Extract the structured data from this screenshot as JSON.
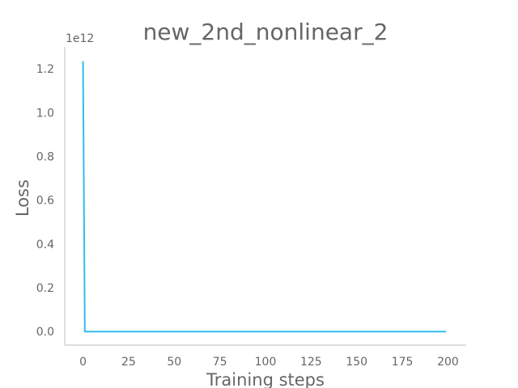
{
  "chart_data": {
    "type": "line",
    "title": "new_2nd_nonlinear_2",
    "xlabel": "Training steps",
    "ylabel": "Loss",
    "y_offset_label": "1e12",
    "x_ticks": [
      "0",
      "25",
      "50",
      "75",
      "100",
      "125",
      "150",
      "175",
      "200"
    ],
    "y_ticks": [
      "0.0",
      "0.2",
      "0.4",
      "0.6",
      "0.8",
      "1.0",
      "1.2"
    ],
    "xlim": [
      -10,
      210
    ],
    "ylim": [
      -0.062,
      1.3
    ],
    "grid": false,
    "series": [
      {
        "color": "#33bbee",
        "x": [
          0,
          1,
          2,
          50,
          100,
          150,
          199
        ],
        "y": [
          1.235,
          0.0,
          0.0,
          0.0,
          0.0,
          0.0,
          0.0
        ]
      }
    ]
  },
  "colors": {
    "line": "#33bbee",
    "axis": "#cccccc",
    "text": "#666666"
  }
}
